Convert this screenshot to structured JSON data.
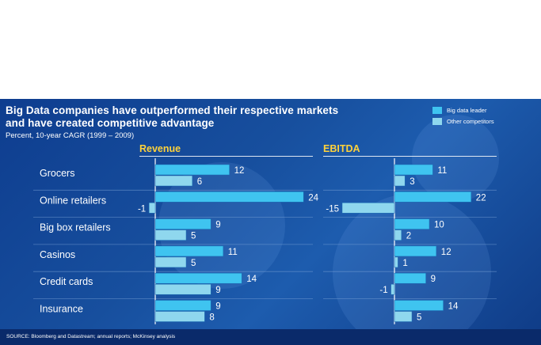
{
  "chart_data": {
    "type": "bar",
    "title": "Big Data companies have outperformed their respective markets",
    "title_line2": "and have created competitive advantage",
    "subtitle": "Percent, 10-year CAGR (1999 – 2009)",
    "categories": [
      "Grocers",
      "Online retailers",
      "Big box retailers",
      "Casinos",
      "Credit cards",
      "Insurance"
    ],
    "legend": [
      {
        "label": "Big data leader",
        "color": "#3fc4f0"
      },
      {
        "label": "Other competitors",
        "color": "#8fd7ee"
      }
    ],
    "panels": [
      {
        "title": "Revenue",
        "series": [
          {
            "name": "Big data leader",
            "values": [
              12,
              24,
              9,
              11,
              14,
              9
            ],
            "labels": [
              "12",
              "24",
              "9",
              "11",
              "14",
              "9"
            ]
          },
          {
            "name": "Other competitors",
            "values": [
              6,
              -1,
              5,
              5,
              9,
              8
            ],
            "labels": [
              "6",
              "-1",
              "5",
              "5",
              "9",
              "8"
            ]
          }
        ]
      },
      {
        "title": "EBITDA",
        "series": [
          {
            "name": "Big data leader",
            "values": [
              11,
              22,
              10,
              12,
              9,
              14
            ],
            "labels": [
              "11",
              "22",
              "10",
              "12",
              "9",
              "14"
            ]
          },
          {
            "name": "Other competitors",
            "values": [
              3,
              -15,
              2,
              1,
              -1,
              5
            ],
            "labels": [
              "3",
              "-15",
              "2",
              "1",
              "-1",
              "5"
            ]
          }
        ]
      }
    ],
    "source": "SOURCE: Bloomberg and Datastream; annual reports; McKinsey analysis"
  }
}
